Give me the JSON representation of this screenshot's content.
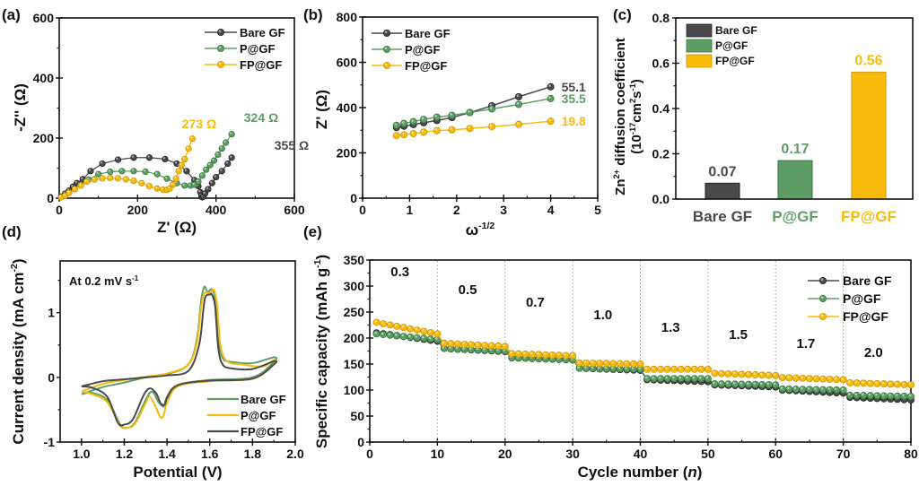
{
  "colors": {
    "bare": "#4a4a4a",
    "p": "#5e9e66",
    "fp": "#f7bb0c",
    "axis": "#111111"
  },
  "chart_data": [
    {
      "id": "a",
      "panel_label": "(a)",
      "type": "scatter",
      "xlabel": "Z' (Ω)",
      "ylabel": "-Z'' (Ω)",
      "xlim": [
        0,
        600
      ],
      "ylim": [
        0,
        600
      ],
      "xticks": [
        "0",
        "200",
        "400",
        "600"
      ],
      "yticks": [
        "0",
        "200",
        "400",
        "600"
      ],
      "legend": [
        "Bare GF",
        "P@GF",
        "FP@GF"
      ],
      "legend_position": "top-right",
      "annotations": [
        {
          "text": "273 Ω",
          "series": "FP@GF"
        },
        {
          "text": "324 Ω",
          "series": "P@GF"
        },
        {
          "text": "355 Ω",
          "series": "Bare GF"
        }
      ],
      "series": [
        {
          "name": "Bare GF",
          "x": [
            5,
            15,
            25,
            35,
            45,
            60,
            80,
            110,
            150,
            190,
            230,
            270,
            300,
            325,
            345,
            355,
            360,
            363,
            365,
            368,
            372,
            380,
            390,
            400,
            415,
            430,
            440
          ],
          "y": [
            5,
            15,
            25,
            38,
            50,
            63,
            90,
            115,
            128,
            135,
            135,
            130,
            115,
            90,
            60,
            40,
            20,
            8,
            3,
            5,
            15,
            30,
            50,
            70,
            90,
            115,
            135
          ]
        },
        {
          "name": "P@GF",
          "x": [
            5,
            15,
            25,
            40,
            55,
            75,
            100,
            130,
            160,
            190,
            220,
            250,
            275,
            300,
            320,
            335,
            345,
            355,
            365,
            375,
            385,
            395,
            405,
            415,
            425,
            440
          ],
          "y": [
            3,
            8,
            18,
            30,
            45,
            62,
            80,
            88,
            90,
            90,
            88,
            80,
            65,
            50,
            42,
            42,
            45,
            55,
            75,
            95,
            110,
            125,
            145,
            165,
            185,
            213
          ]
        },
        {
          "name": "FP@GF",
          "x": [
            5,
            15,
            25,
            40,
            55,
            70,
            90,
            110,
            130,
            150,
            170,
            190,
            210,
            230,
            250,
            265,
            275,
            282,
            290,
            298,
            305,
            312,
            320,
            330,
            340
          ],
          "y": [
            3,
            8,
            18,
            30,
            42,
            55,
            62,
            66,
            67,
            66,
            63,
            58,
            50,
            40,
            32,
            28,
            28,
            32,
            45,
            65,
            90,
            110,
            130,
            165,
            198
          ]
        }
      ]
    },
    {
      "id": "b",
      "panel_label": "(b)",
      "type": "line",
      "xlabel": "ω",
      "xlabel_sup": "-1/2",
      "ylabel": "Z' (Ω)",
      "xlim": [
        0,
        5
      ],
      "ylim": [
        0,
        800
      ],
      "xticks": [
        "0",
        "1",
        "2",
        "3",
        "4",
        "5"
      ],
      "yticks": [
        "0",
        "200",
        "400",
        "600",
        "800"
      ],
      "legend": [
        "Bare GF",
        "P@GF",
        "FP@GF"
      ],
      "legend_position": "top-left",
      "x": [
        0.72,
        0.88,
        1.08,
        1.3,
        1.58,
        1.9,
        2.28,
        2.75,
        3.32,
        4.0
      ],
      "series": [
        {
          "name": "Bare GF",
          "slope_label": "55.1",
          "values": [
            312,
            318,
            325,
            333,
            343,
            356,
            378,
            408,
            448,
            492
          ]
        },
        {
          "name": "P@GF",
          "slope_label": "35.5",
          "values": [
            322,
            330,
            338,
            348,
            358,
            366,
            378,
            394,
            414,
            440
          ]
        },
        {
          "name": "FP@GF",
          "slope_label": "19.8",
          "values": [
            276,
            280,
            285,
            292,
            298,
            302,
            308,
            316,
            326,
            340
          ]
        }
      ]
    },
    {
      "id": "c",
      "panel_label": "(c)",
      "type": "bar",
      "categories": [
        "Bare GF",
        "P@GF",
        "FP@GF"
      ],
      "values": [
        0.07,
        0.17,
        0.56
      ],
      "value_labels": [
        "0.07",
        "0.17",
        "0.56"
      ],
      "ylabel_line1": "Zn",
      "ylabel_line1_sup": "2+",
      "ylabel_line1_rest": " diffusion coefficient",
      "ylabel_line2": "(10",
      "ylabel_line2_sup": "-17",
      "ylabel_line2_rest": "cm",
      "ylabel_line2_sup2": "2",
      "ylabel_line2_rest2": "s",
      "ylabel_line2_sup3": "-1",
      "ylabel_line2_end": ")",
      "ylim": [
        0,
        0.8
      ],
      "yticks": [
        "0.0",
        "0.2",
        "0.4",
        "0.6",
        "0.8"
      ],
      "legend": [
        "Bare GF",
        "P@GF",
        "FP@GF"
      ],
      "legend_position": "top-left"
    },
    {
      "id": "d",
      "panel_label": "(d)",
      "type": "line",
      "xlabel": "Potential (V)",
      "ylabel": "Current density (mA cm",
      "ylabel_sup": "-2",
      "ylabel_end": ")",
      "annotation": "At 0.2 mV s",
      "annotation_sup": "-1",
      "xlim": [
        0.9,
        2.0
      ],
      "ylim": [
        -1,
        1.8
      ],
      "xticks": [
        "1.0",
        "1.2",
        "1.4",
        "1.6",
        "1.8",
        "2.0"
      ],
      "yticks": [
        "-1",
        "0",
        "1"
      ],
      "legend": [
        "Bare GF",
        "P@GF",
        "FP@GF"
      ],
      "legend_position": "bottom-right",
      "series": [
        {
          "name": "Bare GF",
          "color_key": "p",
          "x": [
            1.0,
            1.1,
            1.2,
            1.3,
            1.4,
            1.5,
            1.54,
            1.56,
            1.575,
            1.59,
            1.61,
            1.625,
            1.64,
            1.66,
            1.7,
            1.8,
            1.9,
            1.9,
            1.8,
            1.6,
            1.45,
            1.4,
            1.385,
            1.36,
            1.33,
            1.3,
            1.25,
            1.21,
            1.18,
            1.12,
            1.05,
            1.0
          ],
          "y": [
            -0.26,
            -0.15,
            -0.08,
            0.0,
            0.05,
            0.2,
            0.6,
            1.2,
            1.4,
            1.32,
            1.36,
            1.2,
            0.6,
            0.3,
            0.24,
            0.22,
            0.31,
            0.24,
            0.0,
            -0.04,
            -0.12,
            -0.3,
            -0.45,
            -0.38,
            -0.22,
            -0.35,
            -0.7,
            -0.78,
            -0.72,
            -0.35,
            -0.24,
            -0.26
          ]
        },
        {
          "name": "P@GF",
          "color_key": "fp",
          "x": [
            1.0,
            1.1,
            1.2,
            1.3,
            1.4,
            1.5,
            1.54,
            1.56,
            1.575,
            1.6,
            1.62,
            1.635,
            1.65,
            1.68,
            1.75,
            1.85,
            1.9,
            1.9,
            1.8,
            1.6,
            1.45,
            1.4,
            1.385,
            1.37,
            1.35,
            1.32,
            1.3,
            1.25,
            1.21,
            1.18,
            1.12,
            1.05,
            1.0
          ],
          "y": [
            -0.22,
            -0.1,
            -0.04,
            0.01,
            0.06,
            0.2,
            0.55,
            1.1,
            1.3,
            1.3,
            1.35,
            1.1,
            0.5,
            0.25,
            0.2,
            0.17,
            0.27,
            0.2,
            -0.02,
            -0.06,
            -0.14,
            -0.4,
            -0.58,
            -0.62,
            -0.48,
            -0.3,
            -0.4,
            -0.72,
            -0.78,
            -0.74,
            -0.38,
            -0.26,
            -0.22
          ]
        },
        {
          "name": "FP@GF",
          "color_key": "bare",
          "x": [
            1.0,
            1.1,
            1.2,
            1.3,
            1.4,
            1.5,
            1.55,
            1.57,
            1.58,
            1.6,
            1.61,
            1.625,
            1.64,
            1.66,
            1.7,
            1.8,
            1.9,
            1.9,
            1.8,
            1.6,
            1.45,
            1.4,
            1.39,
            1.37,
            1.35,
            1.32,
            1.29,
            1.24,
            1.2,
            1.17,
            1.12,
            1.05,
            1.0
          ],
          "y": [
            -0.14,
            -0.06,
            -0.03,
            0.0,
            0.03,
            0.1,
            0.5,
            1.05,
            1.25,
            1.28,
            1.28,
            1.1,
            0.45,
            0.2,
            0.14,
            0.13,
            0.25,
            0.2,
            -0.02,
            -0.05,
            -0.12,
            -0.32,
            -0.42,
            -0.4,
            -0.25,
            -0.17,
            -0.28,
            -0.65,
            -0.73,
            -0.7,
            -0.3,
            -0.16,
            -0.14
          ]
        }
      ]
    },
    {
      "id": "e",
      "panel_label": "(e)",
      "type": "scatter",
      "xlabel": "Cycle number (",
      "xlabel_italic": "n",
      "xlabel_end": ")",
      "ylabel": "Specific capacity (mAh g",
      "ylabel_sup": "-1",
      "ylabel_end": ")",
      "xlim": [
        0,
        80
      ],
      "ylim": [
        0,
        350
      ],
      "xticks": [
        "0",
        "10",
        "20",
        "30",
        "40",
        "50",
        "60",
        "70",
        "80"
      ],
      "yticks": [
        "0",
        "50",
        "100",
        "150",
        "200",
        "250",
        "300",
        "350"
      ],
      "rate_labels": [
        "0.3",
        "0.5",
        "0.7",
        "1.0",
        "1.3",
        "1.5",
        "1.7",
        "2.0"
      ],
      "segment_dividers": [
        10,
        20,
        30,
        40,
        50,
        60,
        70
      ],
      "legend": [
        "Bare GF",
        "P@GF",
        "FP@GF"
      ],
      "legend_position": "top-right",
      "series": [
        {
          "name": "Bare GF",
          "segments": [
            [
              210,
              194
            ],
            [
              180,
              174
            ],
            [
              162,
              158
            ],
            [
              142,
              138
            ],
            [
              120,
              116
            ],
            [
              110,
              106
            ],
            [
              100,
              94
            ],
            [
              86,
              81
            ]
          ]
        },
        {
          "name": "P@GF",
          "segments": [
            [
              208,
              197
            ],
            [
              180,
              175
            ],
            [
              162,
              158
            ],
            [
              142,
              140
            ],
            [
              122,
              122
            ],
            [
              112,
              110
            ],
            [
              102,
              100
            ],
            [
              90,
              88
            ]
          ]
        },
        {
          "name": "FP@GF",
          "segments": [
            [
              230,
              208
            ],
            [
              190,
              184
            ],
            [
              170,
              166
            ],
            [
              152,
              150
            ],
            [
              140,
              140
            ],
            [
              132,
              128
            ],
            [
              124,
              120
            ],
            [
              114,
              110
            ]
          ]
        }
      ]
    }
  ]
}
